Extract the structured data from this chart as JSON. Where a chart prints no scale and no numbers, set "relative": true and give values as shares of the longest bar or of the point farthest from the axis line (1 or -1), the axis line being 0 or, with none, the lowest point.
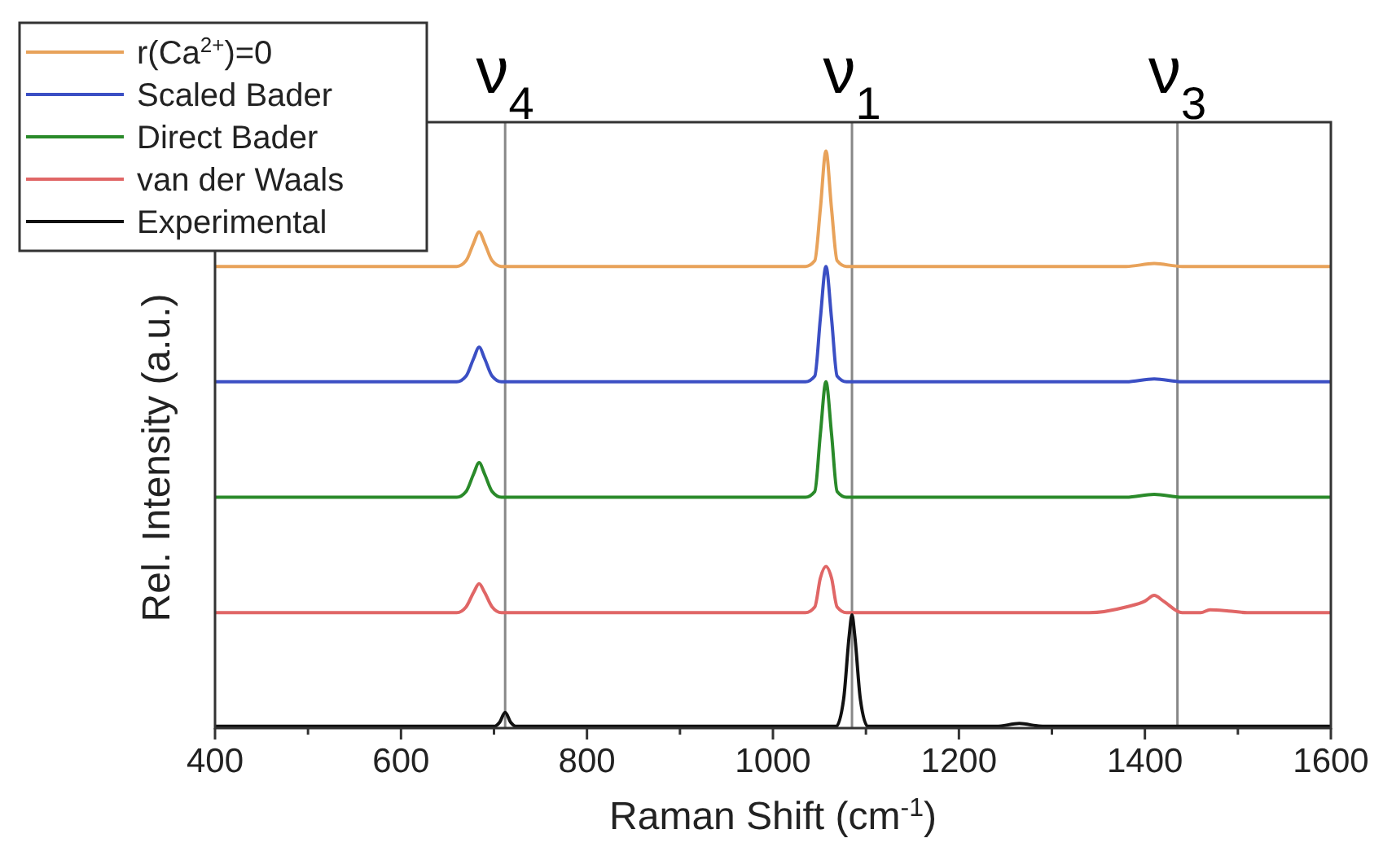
{
  "chart_data": {
    "type": "line",
    "relative": true,
    "xlabel": "Raman Shift (cm$^{-1}$)",
    "ylabel": "Rel. Intensity (a.u.)",
    "xlim": [
      400,
      1600
    ],
    "xticks": [
      400,
      {
        "value": 500,
        "label": null
      },
      600,
      {
        "value": 700,
        "label": null
      },
      800,
      {
        "value": 900,
        "label": null
      },
      1000,
      {
        "value": 1100,
        "label": null
      },
      1200,
      {
        "value": 1300,
        "label": null
      },
      1400,
      {
        "value": 1500,
        "label": null
      },
      1600
    ],
    "legend": "top left",
    "ref_lines": [
      {
        "axis": "x",
        "value": 712,
        "label": "ν$_{4}$",
        "color": "#888888"
      },
      {
        "axis": "x",
        "value": 1085,
        "label": "ν$_{1}$",
        "color": "#888888"
      },
      {
        "axis": "x",
        "value": 1435,
        "label": "ν$_{3}$",
        "color": "#888888"
      }
    ],
    "series": [
      {
        "name": "r(Ca$^{2+}$)=0",
        "color": "#e8a25a",
        "x": [
          400,
          660,
          670,
          678,
          684,
          690,
          698,
          708,
          1000,
          1035,
          1045,
          1051,
          1057,
          1063,
          1069,
          1079,
          1380,
          1410,
          1440,
          1600
        ],
        "values": [
          0.8,
          0.8,
          0.81,
          0.84,
          0.86,
          0.84,
          0.81,
          0.8,
          0.8,
          0.8,
          0.81,
          0.9,
          1.0,
          0.9,
          0.81,
          0.8,
          0.8,
          0.805,
          0.8,
          0.8
        ]
      },
      {
        "name": "Scaled Bader",
        "color": "#3b4fc4",
        "x": [
          400,
          660,
          670,
          678,
          684,
          690,
          698,
          708,
          1000,
          1035,
          1045,
          1051,
          1057,
          1063,
          1069,
          1079,
          1380,
          1410,
          1440,
          1600
        ],
        "values": [
          0.6,
          0.6,
          0.61,
          0.64,
          0.66,
          0.64,
          0.61,
          0.6,
          0.6,
          0.6,
          0.61,
          0.71,
          0.8,
          0.71,
          0.61,
          0.6,
          0.6,
          0.605,
          0.6,
          0.6
        ]
      },
      {
        "name": "Direct Bader",
        "color": "#2a8a2a",
        "x": [
          400,
          660,
          670,
          678,
          684,
          690,
          698,
          708,
          1000,
          1035,
          1045,
          1051,
          1057,
          1063,
          1069,
          1079,
          1380,
          1410,
          1440,
          1600
        ],
        "values": [
          0.4,
          0.4,
          0.41,
          0.44,
          0.46,
          0.44,
          0.41,
          0.4,
          0.4,
          0.4,
          0.41,
          0.51,
          0.6,
          0.51,
          0.41,
          0.4,
          0.4,
          0.405,
          0.4,
          0.4
        ]
      },
      {
        "name": "van der Waals",
        "color": "#e06666",
        "x": [
          400,
          660,
          670,
          678,
          684,
          690,
          698,
          708,
          1000,
          1035,
          1045,
          1051,
          1057,
          1063,
          1069,
          1079,
          1340,
          1380,
          1400,
          1410,
          1420,
          1440,
          1460,
          1470,
          1490,
          1510,
          1600
        ],
        "values": [
          0.2,
          0.2,
          0.21,
          0.235,
          0.25,
          0.235,
          0.21,
          0.2,
          0.2,
          0.2,
          0.21,
          0.26,
          0.28,
          0.26,
          0.21,
          0.2,
          0.2,
          0.21,
          0.22,
          0.23,
          0.22,
          0.2,
          0.2,
          0.205,
          0.203,
          0.2,
          0.2
        ]
      },
      {
        "name": "Experimental",
        "color": "#111111",
        "x": [
          400,
          700,
          706,
          712,
          718,
          724,
          1000,
          1068,
          1076,
          1082,
          1085,
          1088,
          1094,
          1102,
          1240,
          1265,
          1290,
          1600
        ],
        "values": [
          0.003,
          0.003,
          0.01,
          0.027,
          0.01,
          0.003,
          0.003,
          0.003,
          0.05,
          0.16,
          0.196,
          0.16,
          0.05,
          0.003,
          0.003,
          0.008,
          0.003,
          0.003
        ]
      }
    ]
  }
}
